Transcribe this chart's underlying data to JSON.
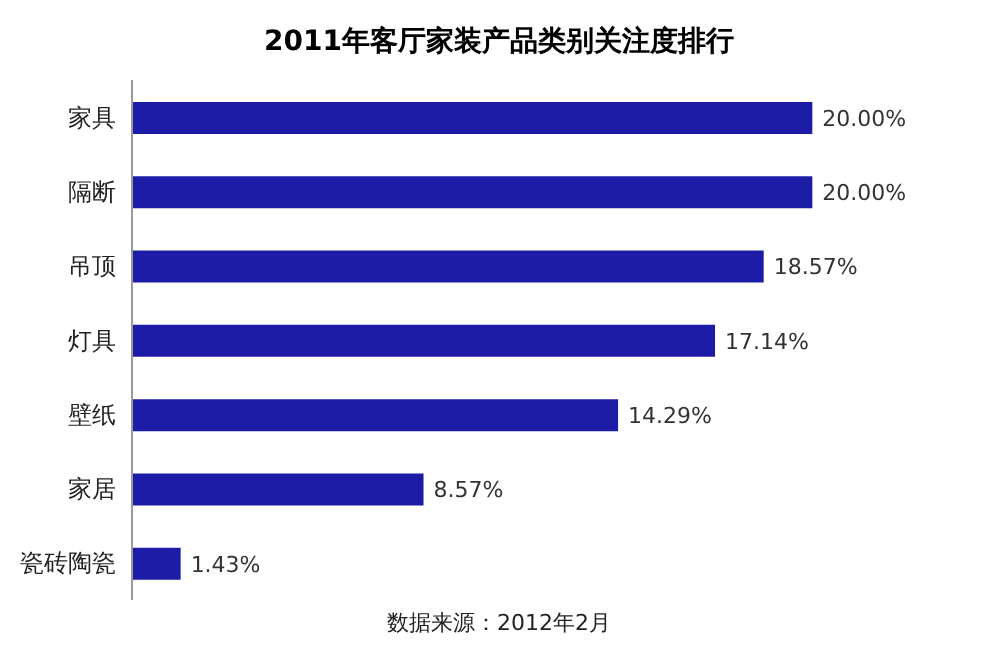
{
  "chart_data": {
    "type": "bar",
    "orientation": "horizontal",
    "title": "2011年客厅家装产品类别关注度排行",
    "categories": [
      "家具",
      "隔断",
      "吊顶",
      "灯具",
      "壁纸",
      "家居",
      "瓷砖陶瓷"
    ],
    "values": [
      20.0,
      20.0,
      18.57,
      17.14,
      14.29,
      8.57,
      1.43
    ],
    "value_labels": [
      "20.00%",
      "20.00%",
      "18.57%",
      "17.14%",
      "14.29%",
      "8.57%",
      "1.43%"
    ],
    "color": "#1c1ca6",
    "annotations": [
      "数据来源：2012年2月"
    ]
  }
}
